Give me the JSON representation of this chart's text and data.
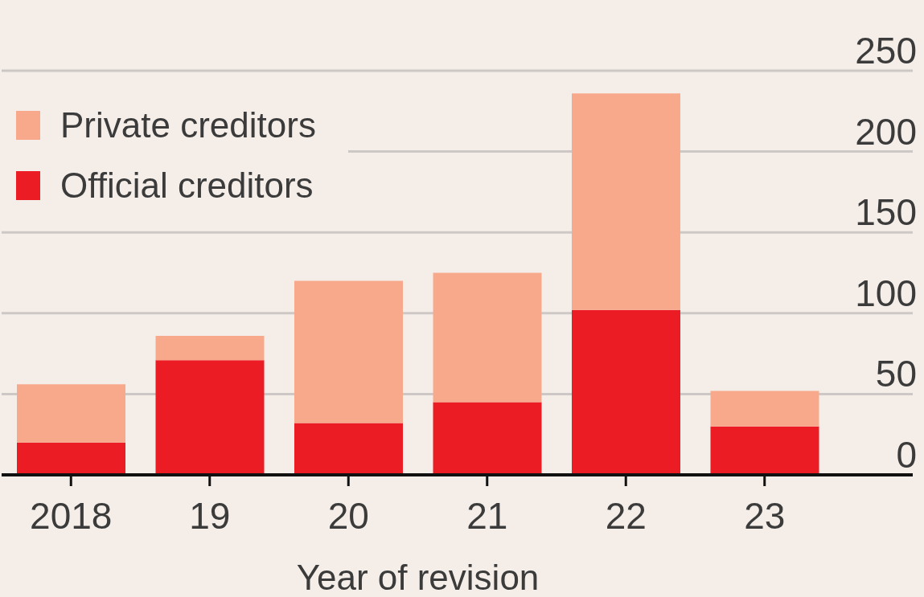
{
  "chart_data": {
    "type": "bar",
    "categories": [
      "2018",
      "19",
      "20",
      "21",
      "22",
      "23"
    ],
    "series": [
      {
        "name": "Official creditors",
        "color": "#ec1c24",
        "values": [
          20,
          71,
          32,
          45,
          102,
          30
        ]
      },
      {
        "name": "Private creditors",
        "color": "#f8a98c",
        "values": [
          36,
          15,
          88,
          80,
          134,
          22
        ]
      }
    ],
    "stacked": true,
    "xlabel": "Year of revision",
    "ylim": [
      0,
      250
    ],
    "yticks": [
      0,
      50,
      100,
      150,
      200,
      250
    ],
    "grid": "y",
    "legend": "top left"
  }
}
